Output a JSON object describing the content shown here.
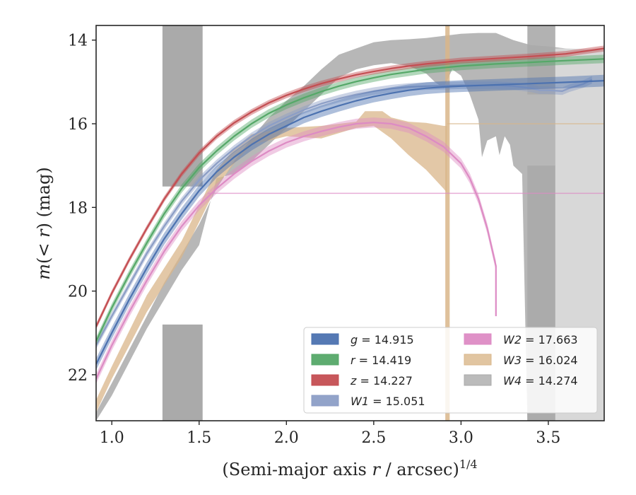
{
  "chart_data": {
    "type": "line",
    "xlabel_main": "(Semi-major axis ",
    "xlabel_var": "r",
    "xlabel_tail": " / arcsec)",
    "xlabel_exp": "1/4",
    "ylabel_main": "m",
    "ylabel_paren": "(< ",
    "ylabel_var": "r",
    "ylabel_tail": ") (mag)",
    "xlim": [
      0.91,
      3.82
    ],
    "ylim": [
      23.1,
      13.65
    ],
    "y_inverted": true,
    "xticks": [
      1.0,
      1.5,
      2.0,
      2.5,
      3.0,
      3.5
    ],
    "xtick_labels": [
      "1.0",
      "1.5",
      "2.0",
      "2.5",
      "3.0",
      "3.5"
    ],
    "yticks": [
      14,
      16,
      18,
      20,
      22
    ],
    "ytick_labels": [
      "14",
      "16",
      "18",
      "20",
      "22"
    ],
    "grid": false,
    "legend_position": "lower-right",
    "series": [
      {
        "name": "g = 14.915",
        "band": "g",
        "value": "14.915",
        "color": "#4c72b0",
        "kind": "curve",
        "points": [
          [
            0.91,
            21.75
          ],
          [
            1.0,
            21.0
          ],
          [
            1.1,
            20.2
          ],
          [
            1.2,
            19.45
          ],
          [
            1.3,
            18.75
          ],
          [
            1.4,
            18.15
          ],
          [
            1.5,
            17.6
          ],
          [
            1.6,
            17.15
          ],
          [
            1.7,
            16.8
          ],
          [
            1.8,
            16.5
          ],
          [
            1.9,
            16.25
          ],
          [
            2.0,
            16.05
          ],
          [
            2.1,
            15.85
          ],
          [
            2.2,
            15.7
          ],
          [
            2.3,
            15.57
          ],
          [
            2.4,
            15.45
          ],
          [
            2.5,
            15.35
          ],
          [
            2.6,
            15.27
          ],
          [
            2.7,
            15.2
          ],
          [
            2.8,
            15.15
          ],
          [
            2.9,
            15.12
          ],
          [
            3.0,
            15.1
          ],
          [
            3.2,
            15.07
          ],
          [
            3.4,
            15.04
          ],
          [
            3.6,
            15.01
          ],
          [
            3.82,
            14.97
          ]
        ],
        "width": 0.14
      },
      {
        "name": "r = 14.419",
        "band": "r",
        "value": "14.419",
        "color": "#55a868",
        "kind": "curve",
        "points": [
          [
            0.91,
            21.2
          ],
          [
            1.0,
            20.4
          ],
          [
            1.1,
            19.6
          ],
          [
            1.2,
            18.85
          ],
          [
            1.3,
            18.15
          ],
          [
            1.4,
            17.55
          ],
          [
            1.5,
            17.05
          ],
          [
            1.6,
            16.65
          ],
          [
            1.7,
            16.3
          ],
          [
            1.8,
            16.0
          ],
          [
            1.9,
            15.75
          ],
          [
            2.0,
            15.55
          ],
          [
            2.1,
            15.38
          ],
          [
            2.2,
            15.23
          ],
          [
            2.3,
            15.1
          ],
          [
            2.4,
            14.99
          ],
          [
            2.5,
            14.9
          ],
          [
            2.6,
            14.82
          ],
          [
            2.7,
            14.76
          ],
          [
            2.8,
            14.7
          ],
          [
            2.9,
            14.66
          ],
          [
            3.0,
            14.62
          ],
          [
            3.2,
            14.57
          ],
          [
            3.4,
            14.53
          ],
          [
            3.6,
            14.49
          ],
          [
            3.82,
            14.45
          ]
        ],
        "width": 0.1
      },
      {
        "name": "z = 14.227",
        "band": "z",
        "value": "14.227",
        "color": "#c44e52",
        "kind": "curve",
        "points": [
          [
            0.91,
            20.85
          ],
          [
            1.0,
            20.05
          ],
          [
            1.1,
            19.25
          ],
          [
            1.2,
            18.5
          ],
          [
            1.3,
            17.8
          ],
          [
            1.4,
            17.2
          ],
          [
            1.5,
            16.7
          ],
          [
            1.6,
            16.3
          ],
          [
            1.7,
            15.98
          ],
          [
            1.8,
            15.72
          ],
          [
            1.9,
            15.5
          ],
          [
            2.0,
            15.32
          ],
          [
            2.1,
            15.17
          ],
          [
            2.2,
            15.04
          ],
          [
            2.3,
            14.93
          ],
          [
            2.4,
            14.83
          ],
          [
            2.5,
            14.75
          ],
          [
            2.6,
            14.68
          ],
          [
            2.7,
            14.62
          ],
          [
            2.8,
            14.57
          ],
          [
            2.9,
            14.53
          ],
          [
            3.0,
            14.49
          ],
          [
            3.2,
            14.44
          ],
          [
            3.4,
            14.39
          ],
          [
            3.6,
            14.33
          ],
          [
            3.7,
            14.27
          ],
          [
            3.82,
            14.2
          ]
        ],
        "width": 0.07
      },
      {
        "name": "W1 = 15.051",
        "band": "W1",
        "value": "15.051",
        "color": "#8c9ec6",
        "kind": "curve",
        "points": [
          [
            0.91,
            21.3
          ],
          [
            1.0,
            20.6
          ],
          [
            1.1,
            19.85
          ],
          [
            1.2,
            19.1
          ],
          [
            1.3,
            18.45
          ],
          [
            1.4,
            17.85
          ],
          [
            1.5,
            17.35
          ],
          [
            1.6,
            16.95
          ],
          [
            1.7,
            16.6
          ],
          [
            1.8,
            16.3
          ],
          [
            1.9,
            16.05
          ],
          [
            2.0,
            15.85
          ],
          [
            2.1,
            15.67
          ],
          [
            2.2,
            15.52
          ],
          [
            2.3,
            15.4
          ],
          [
            2.4,
            15.3
          ],
          [
            2.5,
            15.22
          ],
          [
            2.6,
            15.16
          ],
          [
            2.7,
            15.12
          ],
          [
            2.8,
            15.1
          ],
          [
            2.9,
            15.09
          ],
          [
            3.0,
            15.08
          ],
          [
            3.2,
            15.08
          ],
          [
            3.3,
            15.1
          ],
          [
            3.4,
            15.15
          ],
          [
            3.45,
            15.2
          ],
          [
            3.5,
            15.2
          ],
          [
            3.58,
            15.22
          ],
          [
            3.62,
            15.15
          ],
          [
            3.7,
            15.05
          ],
          [
            3.75,
            14.95
          ]
        ],
        "width": 0.09
      },
      {
        "name": "W2 = 17.663",
        "band": "W2",
        "value": "17.663",
        "color": "#dd8bc4",
        "kind": "curve",
        "points": [
          [
            0.91,
            22.1
          ],
          [
            1.0,
            21.3
          ],
          [
            1.1,
            20.5
          ],
          [
            1.2,
            19.75
          ],
          [
            1.3,
            19.05
          ],
          [
            1.4,
            18.45
          ],
          [
            1.5,
            17.95
          ],
          [
            1.6,
            17.55
          ],
          [
            1.7,
            17.2
          ],
          [
            1.8,
            16.9
          ],
          [
            1.9,
            16.65
          ],
          [
            2.0,
            16.45
          ],
          [
            2.1,
            16.3
          ],
          [
            2.2,
            16.18
          ],
          [
            2.3,
            16.08
          ],
          [
            2.4,
            16.0
          ],
          [
            2.5,
            15.97
          ],
          [
            2.6,
            16.0
          ],
          [
            2.7,
            16.1
          ],
          [
            2.8,
            16.3
          ],
          [
            2.9,
            16.55
          ],
          [
            3.0,
            16.95
          ],
          [
            3.05,
            17.3
          ],
          [
            3.1,
            17.8
          ],
          [
            3.15,
            18.5
          ],
          [
            3.2,
            19.4
          ],
          [
            3.2,
            20.6
          ]
        ],
        "width": 0.12
      },
      {
        "name": "W3 = 16.024",
        "band": "W3",
        "value": "16.024",
        "color": "#d9b68a",
        "kind": "band",
        "upper": [
          [
            0.91,
            22.6
          ],
          [
            1.0,
            21.8
          ],
          [
            1.2,
            20.1
          ],
          [
            1.4,
            18.8
          ],
          [
            1.6,
            17.1
          ],
          [
            1.7,
            16.6
          ],
          [
            1.8,
            16.25
          ],
          [
            2.0,
            16.1
          ],
          [
            2.2,
            16.05
          ],
          [
            2.4,
            15.95
          ],
          [
            2.45,
            15.7
          ],
          [
            2.55,
            15.7
          ],
          [
            2.6,
            15.85
          ],
          [
            2.7,
            15.95
          ],
          [
            2.8,
            15.98
          ],
          [
            2.9,
            16.05
          ],
          [
            2.92,
            16.05
          ]
        ],
        "lower": [
          [
            0.91,
            22.9
          ],
          [
            1.0,
            22.1
          ],
          [
            1.2,
            20.5
          ],
          [
            1.4,
            19.2
          ],
          [
            1.6,
            17.5
          ],
          [
            1.7,
            16.95
          ],
          [
            1.8,
            16.5
          ],
          [
            2.0,
            16.3
          ],
          [
            2.2,
            16.35
          ],
          [
            2.4,
            16.1
          ],
          [
            2.5,
            16.05
          ],
          [
            2.6,
            16.35
          ],
          [
            2.7,
            16.75
          ],
          [
            2.8,
            17.1
          ],
          [
            2.9,
            17.55
          ],
          [
            2.92,
            17.65
          ]
        ]
      },
      {
        "name": "W4 = 14.274",
        "band": "W4",
        "value": "14.274",
        "color": "#aaaaaa",
        "kind": "band",
        "upper": [
          [
            0.91,
            22.9
          ],
          [
            1.0,
            22.2
          ],
          [
            1.1,
            21.4
          ],
          [
            1.2,
            20.6
          ],
          [
            1.3,
            19.8
          ],
          [
            1.4,
            19.1
          ],
          [
            1.5,
            18.4
          ],
          [
            1.6,
            17.55
          ],
          [
            1.7,
            16.9
          ],
          [
            1.8,
            16.35
          ],
          [
            1.9,
            15.85
          ],
          [
            2.0,
            15.45
          ],
          [
            2.1,
            15.1
          ],
          [
            2.2,
            14.7
          ],
          [
            2.3,
            14.35
          ],
          [
            2.4,
            14.2
          ],
          [
            2.5,
            14.05
          ],
          [
            2.6,
            14.0
          ],
          [
            2.7,
            13.98
          ],
          [
            2.8,
            13.95
          ],
          [
            2.9,
            13.9
          ],
          [
            3.0,
            13.85
          ],
          [
            3.1,
            13.83
          ],
          [
            3.2,
            13.83
          ],
          [
            3.3,
            14.0
          ],
          [
            3.4,
            14.12
          ],
          [
            3.5,
            14.15
          ],
          [
            3.6,
            14.2
          ],
          [
            3.7,
            14.22
          ],
          [
            3.82,
            14.24
          ]
        ],
        "lower": [
          [
            0.91,
            23.1
          ],
          [
            1.0,
            22.5
          ],
          [
            1.1,
            21.7
          ],
          [
            1.2,
            20.9
          ],
          [
            1.3,
            20.2
          ],
          [
            1.4,
            19.5
          ],
          [
            1.5,
            18.9
          ],
          [
            1.6,
            17.3
          ],
          [
            1.7,
            17.2
          ],
          [
            1.8,
            16.9
          ],
          [
            1.9,
            16.5
          ],
          [
            2.0,
            16.1
          ],
          [
            2.1,
            15.7
          ],
          [
            2.2,
            15.3
          ],
          [
            2.3,
            14.9
          ],
          [
            2.4,
            14.7
          ],
          [
            2.5,
            14.6
          ],
          [
            2.6,
            14.55
          ],
          [
            2.7,
            14.62
          ],
          [
            2.8,
            14.8
          ],
          [
            2.85,
            15.0
          ],
          [
            2.9,
            15.15
          ],
          [
            2.95,
            14.7
          ],
          [
            3.0,
            14.85
          ],
          [
            3.05,
            15.3
          ],
          [
            3.1,
            15.9
          ],
          [
            3.12,
            16.8
          ],
          [
            3.15,
            16.4
          ],
          [
            3.2,
            16.3
          ],
          [
            3.22,
            16.75
          ],
          [
            3.25,
            16.3
          ],
          [
            3.28,
            16.5
          ],
          [
            3.3,
            17.0
          ],
          [
            3.35,
            17.2
          ],
          [
            3.38,
            23.1
          ],
          [
            3.82,
            23.1
          ]
        ]
      }
    ],
    "legend_left_column": [
      "g = 14.915",
      "r = 14.419",
      "z = 14.227",
      "W1 = 15.051"
    ],
    "legend_right_column": [
      "W2 = 17.663",
      "W3 = 16.024",
      "W4 = 14.274"
    ]
  }
}
